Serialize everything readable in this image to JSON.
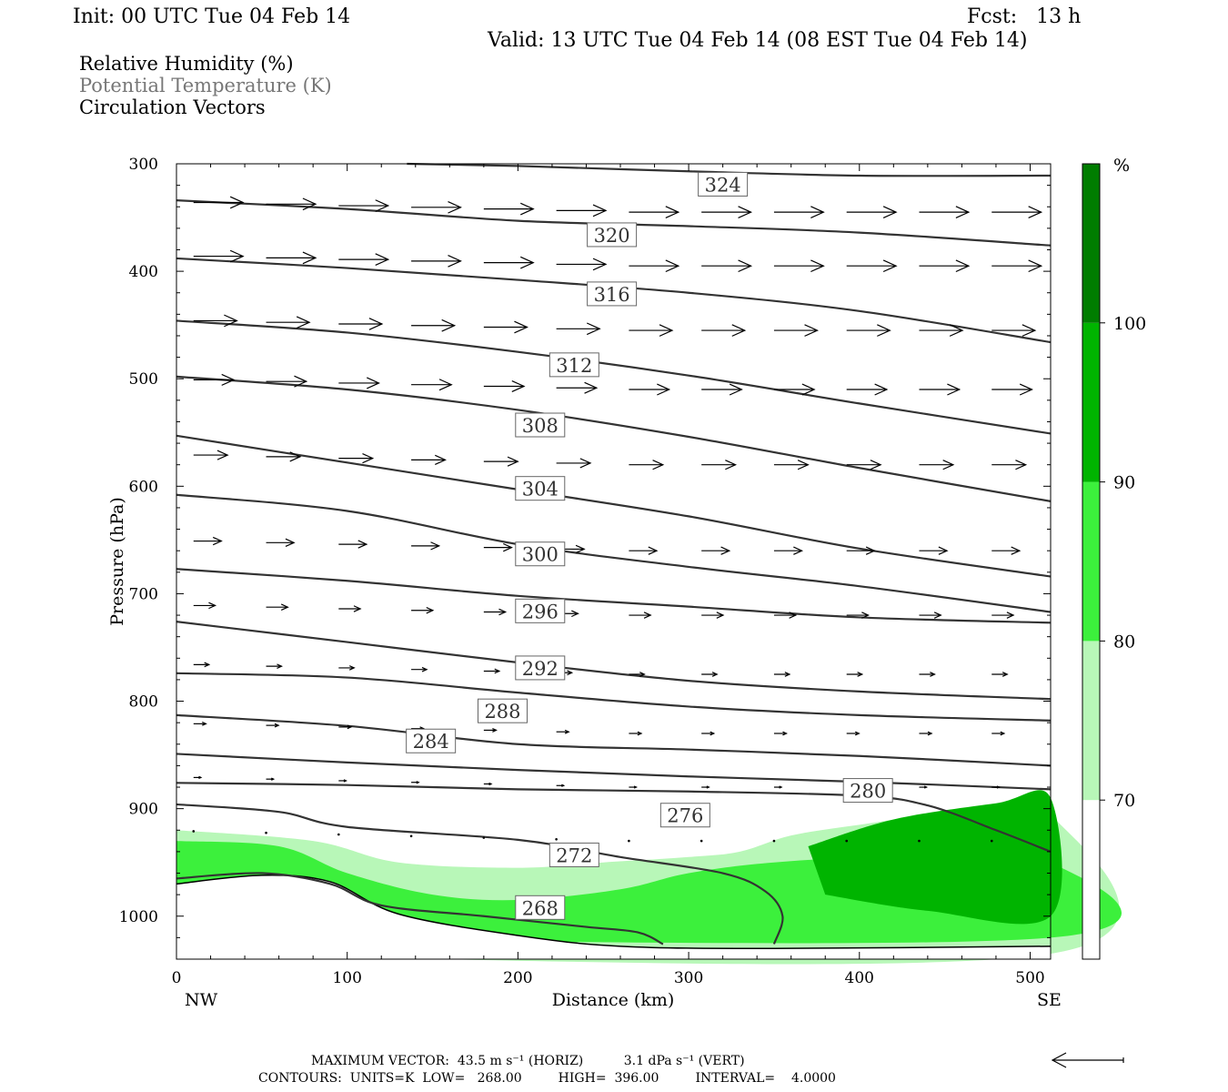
{
  "header": {
    "init": "Init: 00 UTC Tue 04 Feb 14",
    "fcst": "Fcst:   13 h",
    "valid": "Valid: 13 UTC Tue 04 Feb 14 (08 EST Tue 04 Feb 14)"
  },
  "legend": {
    "line1": "Relative Humidity (%)",
    "line2": "Potential Temperature (K)",
    "line3": "Circulation Vectors"
  },
  "footer": {
    "line1": "MAXIMUM VECTOR:  43.5 m s⁻¹ (HORIZ)          3.1 dPa s⁻¹ (VERT)",
    "line2": "CONTOURS:  UNITS=K  LOW=   268.00         HIGH=  396.00         INTERVAL=    4.0000"
  },
  "colors": {
    "rh70": "#b8f7b8",
    "rh80": "#3cf03c",
    "rh90": "#00b400",
    "rh100": "#007d00",
    "theta_line": "#333333"
  },
  "chart_data": {
    "type": "cross-section",
    "xlabel": "Distance (km)",
    "ylabel": "Pressure (hPa)",
    "xlim": [
      0,
      512
    ],
    "ylim": [
      1040,
      300
    ],
    "y_scale": "linear, inverted",
    "x_ticks": [
      0,
      100,
      200,
      300,
      400,
      500
    ],
    "y_ticks": [
      300,
      400,
      500,
      600,
      700,
      800,
      900,
      1000
    ],
    "x_end_labels": {
      "left": "NW",
      "right": "SE"
    },
    "colorbar": {
      "unit": "%",
      "levels": [
        70,
        80,
        90,
        100
      ],
      "colors": [
        "#ffffff",
        "#b8f7b8",
        "#3cf03c",
        "#00b400",
        "#007d00"
      ]
    },
    "contour_labels": [
      {
        "value": "324",
        "x": 320,
        "p": 319
      },
      {
        "value": "320",
        "x": 255,
        "p": 366
      },
      {
        "value": "316",
        "x": 255,
        "p": 421
      },
      {
        "value": "312",
        "x": 233,
        "p": 487
      },
      {
        "value": "308",
        "x": 213,
        "p": 543
      },
      {
        "value": "304",
        "x": 213,
        "p": 602
      },
      {
        "value": "300",
        "x": 213,
        "p": 663
      },
      {
        "value": "296",
        "x": 213,
        "p": 716
      },
      {
        "value": "292",
        "x": 213,
        "p": 769
      },
      {
        "value": "288",
        "x": 191,
        "p": 809
      },
      {
        "value": "284",
        "x": 149,
        "p": 837
      },
      {
        "value": "280",
        "x": 405,
        "p": 883
      },
      {
        "value": "276",
        "x": 298,
        "p": 906
      },
      {
        "value": "272",
        "x": 233,
        "p": 943
      },
      {
        "value": "268",
        "x": 213,
        "p": 992
      }
    ],
    "theta_contours": [
      {
        "value": 324,
        "points": [
          [
            135,
            300
          ],
          [
            200,
            302
          ],
          [
            300,
            307
          ],
          [
            400,
            311
          ],
          [
            512,
            311
          ]
        ]
      },
      {
        "value": 320,
        "points": [
          [
            0,
            334
          ],
          [
            100,
            342
          ],
          [
            200,
            353
          ],
          [
            300,
            358
          ],
          [
            400,
            364
          ],
          [
            512,
            376
          ]
        ]
      },
      {
        "value": 316,
        "points": [
          [
            0,
            388
          ],
          [
            100,
            397
          ],
          [
            200,
            408
          ],
          [
            300,
            420
          ],
          [
            400,
            437
          ],
          [
            512,
            466
          ]
        ]
      },
      {
        "value": 312,
        "points": [
          [
            0,
            446
          ],
          [
            100,
            457
          ],
          [
            200,
            475
          ],
          [
            300,
            497
          ],
          [
            400,
            523
          ],
          [
            512,
            551
          ]
        ]
      },
      {
        "value": 308,
        "points": [
          [
            0,
            498
          ],
          [
            100,
            510
          ],
          [
            200,
            529
          ],
          [
            300,
            554
          ],
          [
            400,
            583
          ],
          [
            512,
            614
          ]
        ]
      },
      {
        "value": 304,
        "points": [
          [
            0,
            553
          ],
          [
            100,
            578
          ],
          [
            200,
            603
          ],
          [
            300,
            628
          ],
          [
            400,
            658
          ],
          [
            512,
            684
          ]
        ]
      },
      {
        "value": 300,
        "points": [
          [
            0,
            608
          ],
          [
            100,
            623
          ],
          [
            200,
            654
          ],
          [
            300,
            675
          ],
          [
            400,
            693
          ],
          [
            512,
            717
          ]
        ]
      },
      {
        "value": 296,
        "points": [
          [
            0,
            677
          ],
          [
            100,
            688
          ],
          [
            200,
            702
          ],
          [
            300,
            712
          ],
          [
            400,
            722
          ],
          [
            512,
            727
          ]
        ]
      },
      {
        "value": 292,
        "points": [
          [
            0,
            726
          ],
          [
            100,
            745
          ],
          [
            200,
            764
          ],
          [
            300,
            781
          ],
          [
            400,
            791
          ],
          [
            512,
            798
          ]
        ]
      },
      {
        "value": 288,
        "points": [
          [
            0,
            774
          ],
          [
            100,
            778
          ],
          [
            200,
            792
          ],
          [
            300,
            805
          ],
          [
            400,
            813
          ],
          [
            512,
            818
          ]
        ]
      },
      {
        "value": 284,
        "points": [
          [
            0,
            813
          ],
          [
            100,
            823
          ],
          [
            200,
            840
          ],
          [
            300,
            845
          ],
          [
            400,
            851
          ],
          [
            512,
            860
          ]
        ]
      },
      {
        "value": 280,
        "points": [
          [
            0,
            849
          ],
          [
            100,
            857
          ],
          [
            200,
            864
          ],
          [
            300,
            870
          ],
          [
            400,
            875
          ],
          [
            512,
            882
          ]
        ]
      },
      {
        "value": 276,
        "points": [
          [
            0,
            876
          ],
          [
            100,
            878
          ],
          [
            200,
            882
          ],
          [
            300,
            884
          ],
          [
            400,
            888
          ],
          [
            440,
            897
          ],
          [
            480,
            920
          ],
          [
            512,
            940
          ]
        ]
      },
      {
        "value": 272,
        "points": [
          [
            0,
            896
          ],
          [
            60,
            903
          ],
          [
            100,
            917
          ],
          [
            200,
            929
          ],
          [
            260,
            945
          ],
          [
            320,
            960
          ],
          [
            345,
            977
          ],
          [
            355,
            1000
          ],
          [
            350,
            1026
          ]
        ]
      },
      {
        "value": 268,
        "points": [
          [
            0,
            965
          ],
          [
            50,
            960
          ],
          [
            90,
            970
          ],
          [
            120,
            990
          ],
          [
            180,
            1000
          ],
          [
            240,
            1010
          ],
          [
            270,
            1015
          ],
          [
            285,
            1026
          ]
        ]
      }
    ],
    "rh_regions": [
      {
        "level": 70,
        "points": [
          [
            0,
            920
          ],
          [
            80,
            930
          ],
          [
            130,
            950
          ],
          [
            200,
            955
          ],
          [
            250,
            950
          ],
          [
            300,
            945
          ],
          [
            330,
            940
          ],
          [
            360,
            925
          ],
          [
            400,
            915
          ],
          [
            450,
            905
          ],
          [
            512,
            905
          ],
          [
            512,
            1035
          ],
          [
            0,
            1035
          ]
        ]
      },
      {
        "level": 80,
        "points": [
          [
            0,
            930
          ],
          [
            60,
            935
          ],
          [
            100,
            960
          ],
          [
            150,
            980
          ],
          [
            200,
            985
          ],
          [
            260,
            975
          ],
          [
            300,
            960
          ],
          [
            350,
            950
          ],
          [
            420,
            945
          ],
          [
            512,
            950
          ],
          [
            512,
            1020
          ],
          [
            0,
            1020
          ]
        ]
      },
      {
        "level": 90,
        "points": [
          [
            370,
            935
          ],
          [
            420,
            910
          ],
          [
            480,
            895
          ],
          [
            512,
            890
          ],
          [
            512,
            1000
          ],
          [
            440,
            995
          ],
          [
            380,
            980
          ]
        ]
      }
    ],
    "surface_pressure": [
      [
        0,
        970
      ],
      [
        50,
        962
      ],
      [
        90,
        968
      ],
      [
        130,
        998
      ],
      [
        200,
        1018
      ],
      [
        260,
        1028
      ],
      [
        350,
        1030
      ],
      [
        512,
        1028
      ]
    ]
  }
}
